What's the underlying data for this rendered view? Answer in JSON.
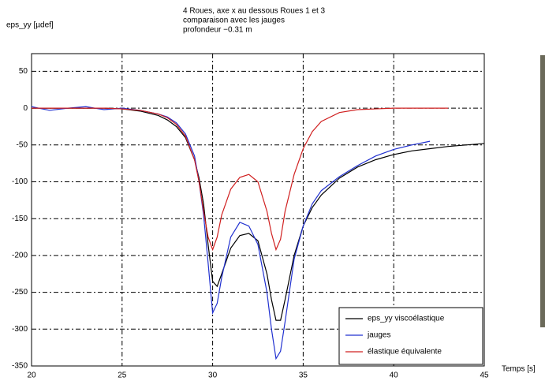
{
  "chart_data": {
    "type": "line",
    "title": [
      "4 Roues, axe x au dessous Roues 1 et 3",
      "comparaison avec les jauges",
      "profondeur −0.31 m"
    ],
    "y_label": "eps_yy [µdef]",
    "x_label": "Temps [s]",
    "x": [
      20,
      21,
      22,
      23,
      24,
      25,
      26,
      27,
      27.5,
      28,
      28.5,
      29,
      29.25,
      29.5,
      29.75,
      30,
      30.25,
      30.5,
      31,
      31.5,
      32,
      32.5,
      33,
      33.25,
      33.5,
      33.75,
      34,
      34.5,
      35,
      35.5,
      36,
      37,
      38,
      39,
      40,
      41,
      42,
      43,
      44,
      45
    ],
    "series": [
      {
        "name": "eps_yy viscoélastique",
        "color": "#000000",
        "values": [
          0,
          0,
          0,
          0,
          0,
          -1,
          -4,
          -10,
          -16,
          -25,
          -40,
          -70,
          -95,
          -130,
          -185,
          -235,
          -242,
          -225,
          -190,
          -173,
          -170,
          -180,
          -225,
          -260,
          -288,
          -288,
          -260,
          -200,
          -160,
          -135,
          -118,
          -95,
          -80,
          -70,
          -63,
          -58,
          -55,
          -52,
          -50,
          -48
        ]
      },
      {
        "name": "jauges",
        "color": "#2030d0",
        "values": [
          2,
          -3,
          0,
          2,
          -2,
          0,
          -3,
          -8,
          -12,
          -20,
          -35,
          -65,
          -100,
          -145,
          -210,
          -278,
          -265,
          -230,
          -175,
          -155,
          -160,
          -185,
          -250,
          -300,
          -340,
          -330,
          -290,
          -205,
          -160,
          -130,
          -112,
          -93,
          -78,
          -65,
          -56,
          -50,
          -45,
          null,
          null,
          null
        ]
      },
      {
        "name": "élastique équivalente",
        "color": "#d02020",
        "values": [
          0,
          0,
          0,
          0,
          0,
          -1,
          -3,
          -8,
          -13,
          -22,
          -38,
          -70,
          -100,
          -140,
          -175,
          -192,
          -175,
          -145,
          -110,
          -94,
          -90,
          -100,
          -140,
          -170,
          -192,
          -178,
          -140,
          -90,
          -55,
          -32,
          -18,
          -6,
          -2,
          -1,
          0,
          0,
          0,
          0,
          null,
          null
        ]
      }
    ],
    "xlim": [
      20,
      45
    ],
    "xticks": [
      20,
      25,
      30,
      35,
      40,
      45
    ],
    "ylim": [
      -350,
      74
    ],
    "yticks": [
      50,
      0,
      -50,
      -100,
      -150,
      -200,
      -250,
      -300,
      -350
    ],
    "grid": true,
    "legend": "lower right"
  }
}
